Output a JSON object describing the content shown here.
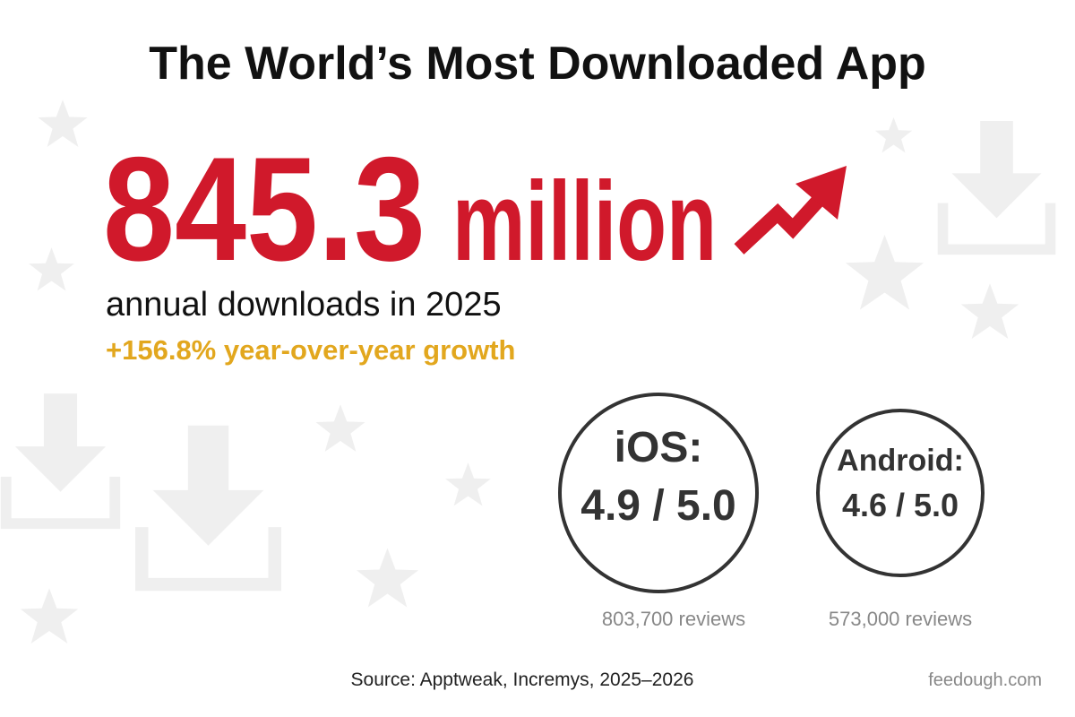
{
  "header": {
    "title": "The World’s Most Downloaded App"
  },
  "headline": {
    "number": "845.3",
    "unit": "million",
    "caption": "annual downloads in 2025",
    "growth": "+156.8% year-over-year growth"
  },
  "ratings": [
    {
      "platform": "iOS:",
      "score": "4.9 / 5.0",
      "reviews": "803,700 reviews"
    },
    {
      "platform": "Android:",
      "score": "4.6 / 5.0",
      "reviews": "573,000 reviews"
    }
  ],
  "footer": {
    "source": "Source: Apptweak, Incremys, 2025–2026",
    "brand": "feedough.com"
  }
}
